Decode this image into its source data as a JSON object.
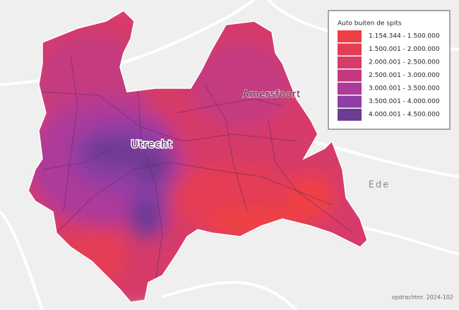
{
  "legend": {
    "title": "Auto buiten de spits",
    "items": [
      {
        "label": "1.154.344 - 1.500.000",
        "color": "#ee3f45"
      },
      {
        "label": "1.500.001 - 2.000.000",
        "color": "#e43e55"
      },
      {
        "label": "2.000.001 - 2.500.000",
        "color": "#d63b69"
      },
      {
        "label": "2.500.001 - 3.000.000",
        "color": "#c43a80"
      },
      {
        "label": "3.000.001 - 3.500.000",
        "color": "#ad3b99"
      },
      {
        "label": "3.500.001 - 4.000.000",
        "color": "#8e3ea4"
      },
      {
        "label": "4.000.001 - 4.500.000",
        "color": "#6c3b93"
      }
    ]
  },
  "places": [
    {
      "label": "Utrecht"
    },
    {
      "label": "Amersfoort"
    },
    {
      "label": "Ede"
    }
  ],
  "footer": "opdrachtnr. 2024-102"
}
